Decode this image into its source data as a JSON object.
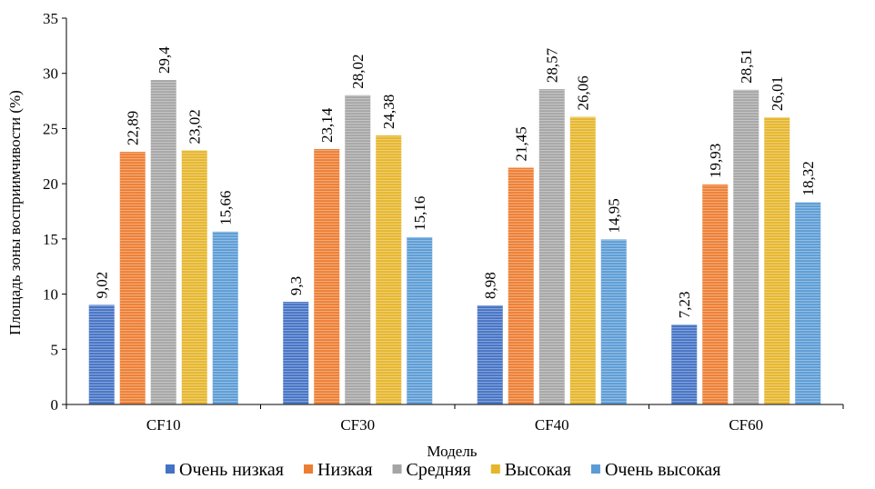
{
  "chart_data": {
    "type": "bar",
    "categories": [
      "CF10",
      "CF30",
      "CF40",
      "CF60"
    ],
    "series": [
      {
        "name": "Очень низкая",
        "color": "#4472C4",
        "values": [
          9.02,
          9.3,
          8.98,
          7.23
        ],
        "labels": [
          "9,02",
          "9,3",
          "8,98",
          "7,23"
        ]
      },
      {
        "name": "Низкая",
        "color": "#ED7D31",
        "values": [
          22.89,
          23.14,
          21.45,
          19.93
        ],
        "labels": [
          "22,89",
          "23,14",
          "21,45",
          "19,93"
        ]
      },
      {
        "name": "Средняя",
        "color": "#A5A5A5",
        "values": [
          29.4,
          28.02,
          28.57,
          28.51
        ],
        "labels": [
          "29,4",
          "28,02",
          "28,57",
          "28,51"
        ]
      },
      {
        "name": "Высокая",
        "color": "#E5B52A",
        "values": [
          23.02,
          24.38,
          26.06,
          26.01
        ],
        "labels": [
          "23,02",
          "24,38",
          "26,06",
          "26,01"
        ]
      },
      {
        "name": "Очень высокая",
        "color": "#5B9BD5",
        "values": [
          15.66,
          15.16,
          14.95,
          18.32
        ],
        "labels": [
          "15,66",
          "15,16",
          "14,95",
          "18,32"
        ]
      }
    ],
    "xlabel": "Модель",
    "ylabel": "Площадь зоны восприимчивости (%)",
    "ylim": [
      0,
      35
    ],
    "yticks": [
      0,
      5,
      10,
      15,
      20,
      25,
      30,
      35
    ],
    "legend_position": "bottom",
    "grid": false
  }
}
